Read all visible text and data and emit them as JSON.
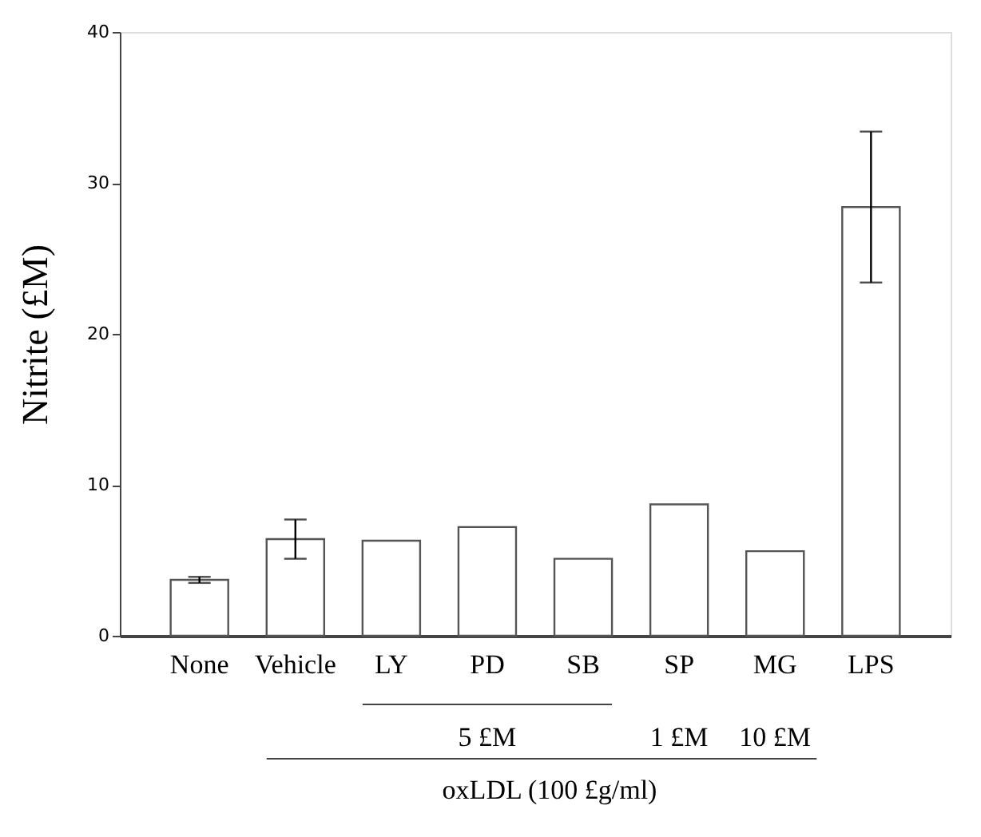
{
  "chart_data": {
    "type": "bar",
    "ylabel": "Nitrite (£M)",
    "categories": [
      "None",
      "Vehicle",
      "LY",
      "PD",
      "SB",
      "SP",
      "MG",
      "LPS"
    ],
    "values": [
      3.7,
      6.4,
      6.3,
      7.2,
      5.1,
      8.7,
      5.6,
      28.4
    ],
    "errors": [
      0.2,
      [
        5.1,
        7.7
      ],
      null,
      null,
      null,
      null,
      null,
      [
        23.4,
        33.4
      ]
    ],
    "color": "#ffffff",
    "ylim": [
      0,
      40
    ],
    "yticks": [
      0,
      10,
      20,
      30,
      40
    ],
    "grid": false,
    "annotations": [
      "5 £M",
      "1 £M",
      "10 £M",
      "oxLDL (100 £g/ml)"
    ]
  }
}
